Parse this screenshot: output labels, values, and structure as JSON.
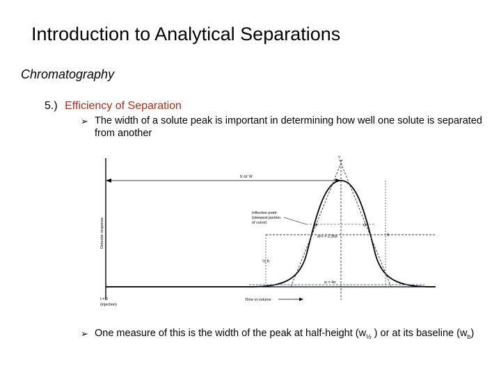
{
  "slide": {
    "title": "Introduction to Analytical Separations",
    "subtitle": "Chromatography",
    "section_number": "5.)",
    "section_heading": "Efficiency of Separation",
    "bullets": [
      {
        "text": "The width of a solute peak is important in determining how well one solute is separated from another"
      },
      {
        "text_before": "One measure of this is the width of the peak at half-height (w",
        "sub1": "½",
        "text_middle": " ) or at its baseline (w",
        "sub2": "b",
        "text_after": ")"
      }
    ],
    "bullet_marker": "➢"
  },
  "figure": {
    "ylabel": "Detector response",
    "xlabel": "Time or volume",
    "t0_label": "t = 0",
    "injection_label": "(injection)",
    "tr_label": "tr or Vr",
    "inflection_label": [
      "Inflection point",
      "(steepest portion",
      "of curve)"
    ],
    "sigma": "σ",
    "w_half_label": "w½ = 2.35σ",
    "wb_label": "w = 4σ",
    "h_label": "h",
    "half_h_label": "½ h",
    "apex_label": "V"
  }
}
